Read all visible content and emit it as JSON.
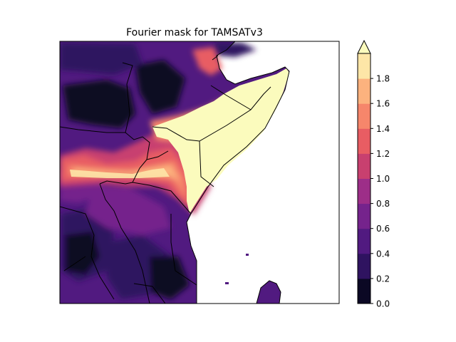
{
  "title": "Fourier mask for TAMSATv3",
  "colorbar": {
    "ticks": [
      "0.0",
      "0.2",
      "0.4",
      "0.6",
      "0.8",
      "1.0",
      "1.2",
      "1.4",
      "1.6",
      "1.8"
    ],
    "levels": [
      0.0,
      0.2,
      0.4,
      0.6,
      0.8,
      1.0,
      1.2,
      1.4,
      1.6,
      1.8
    ],
    "colors": [
      "#0b0824",
      "#2f1360",
      "#511a80",
      "#75238c",
      "#9d2e88",
      "#c8406f",
      "#e85d63",
      "#f6866b",
      "#fcb27e",
      "#fde6a7"
    ],
    "extend": "max",
    "extend_color": "#fbfbbd"
  },
  "map": {
    "ocean_color": "#ffffff",
    "border_color": "#000000"
  }
}
